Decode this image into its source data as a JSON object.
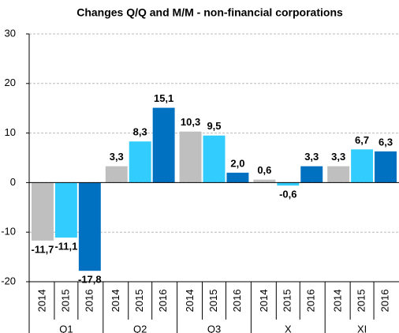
{
  "chart_data": {
    "type": "bar",
    "title": "Changes Q/Q and M/M - non-financial corporations",
    "categories": [
      "Q1",
      "Q2",
      "Q3",
      "X",
      "XI"
    ],
    "series": [
      {
        "name": "2014",
        "color": "#bfbfbf",
        "values": [
          -11.7,
          3.3,
          10.3,
          0.6,
          3.3
        ],
        "value_labels": [
          "-11,7",
          "3,3",
          "10,3",
          "0,6",
          "3,3"
        ]
      },
      {
        "name": "2015",
        "color": "#33ccff",
        "values": [
          -11.1,
          8.3,
          9.5,
          -0.6,
          6.7
        ],
        "value_labels": [
          "-11,1",
          "8,3",
          "9,5",
          "-0,6",
          "6,7"
        ]
      },
      {
        "name": "2016",
        "color": "#0070c0",
        "values": [
          -17.8,
          15.1,
          2.0,
          3.3,
          6.3
        ],
        "value_labels": [
          "-17,8",
          "15,1",
          "2,0",
          "3,3",
          "6,3"
        ]
      }
    ],
    "ylim": [
      -20,
      30
    ],
    "yticks": [
      -20,
      -10,
      0,
      10,
      20,
      30
    ],
    "grid": true
  }
}
